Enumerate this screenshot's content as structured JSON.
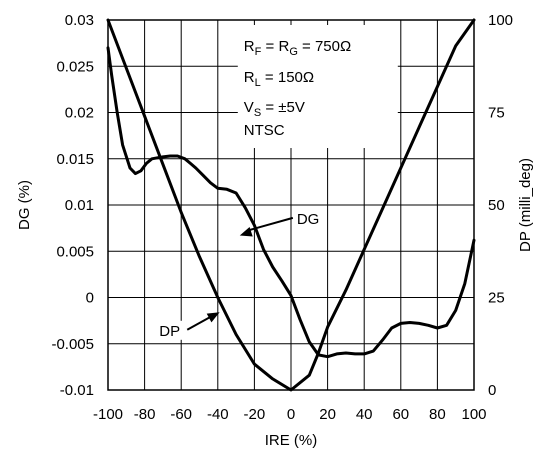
{
  "chart_data": {
    "type": "line",
    "xlabel": "IRE (%)",
    "ylabel_left": "DG (%)",
    "ylabel_right": "DP (milli_deg)",
    "xlim": [
      -100,
      100
    ],
    "ylim_left": [
      -0.01,
      0.03
    ],
    "ylim_right": [
      0,
      100
    ],
    "x_ticks": [
      "-100",
      "-80",
      "-60",
      "-40",
      "-20",
      "0",
      "20",
      "40",
      "60",
      "80",
      "100"
    ],
    "y_ticks_left": [
      "-0.01",
      "-0.005",
      "0",
      "0.005",
      "0.01",
      "0.015",
      "0.02",
      "0.025",
      "0.03"
    ],
    "y_ticks_right": [
      "0",
      "25",
      "50",
      "75",
      "100"
    ],
    "grid": true,
    "series": [
      {
        "name": "DG",
        "axis": "left",
        "x": [
          -100,
          -98,
          -95,
          -92,
          -88,
          -85,
          -82,
          -79,
          -76,
          -73,
          -70,
          -66,
          -62,
          -58,
          -55,
          -52,
          -48,
          -44,
          -40,
          -35,
          -30,
          -25,
          -20,
          -15,
          -10,
          -5,
          0,
          5,
          10,
          15,
          20,
          25,
          30,
          35,
          40,
          45,
          50,
          55,
          60,
          65,
          70,
          75,
          80,
          85,
          90,
          95,
          100
        ],
        "y": [
          0.027,
          0.024,
          0.02,
          0.0165,
          0.014,
          0.0134,
          0.0137,
          0.0145,
          0.015,
          0.0151,
          0.0152,
          0.0153,
          0.0153,
          0.015,
          0.0145,
          0.014,
          0.0132,
          0.0124,
          0.0118,
          0.0117,
          0.0113,
          0.0097,
          0.0078,
          0.0052,
          0.0033,
          0.0018,
          0.0002,
          -0.0024,
          -0.0048,
          -0.0062,
          -0.0064,
          -0.0061,
          -0.006,
          -0.0061,
          -0.0061,
          -0.0058,
          -0.0046,
          -0.0033,
          -0.0028,
          -0.0027,
          -0.0028,
          -0.003,
          -0.0033,
          -0.003,
          -0.0014,
          0.0015,
          0.0062
        ]
      },
      {
        "name": "DP",
        "axis": "right",
        "x": [
          -100,
          -90,
          -80,
          -70,
          -60,
          -50,
          -40,
          -30,
          -20,
          -10,
          0,
          10,
          15,
          20,
          30,
          40,
          50,
          60,
          70,
          80,
          90,
          100
        ],
        "y": [
          100,
          87,
          74,
          61,
          48,
          36,
          25,
          15,
          7,
          3,
          0,
          4,
          10,
          17,
          27,
          38,
          49,
          60,
          71,
          82,
          93,
          100
        ]
      }
    ],
    "annotations": {
      "dg_label": "DG",
      "dp_label": "DP",
      "cond_rf": "R",
      "cond_rf_sub1": "F",
      "cond_rf_mid": " = R",
      "cond_rf_sub2": "G",
      "cond_rf_val": " = 750Ω",
      "cond_rl": "R",
      "cond_rl_sub": "L",
      "cond_rl_val": " = 150Ω",
      "cond_vs": "V",
      "cond_vs_sub": "S",
      "cond_vs_val": " = ±5V",
      "cond_std": "NTSC"
    },
    "colors": {
      "line": "#000000",
      "grid": "#000000",
      "background": "#ffffff"
    }
  }
}
